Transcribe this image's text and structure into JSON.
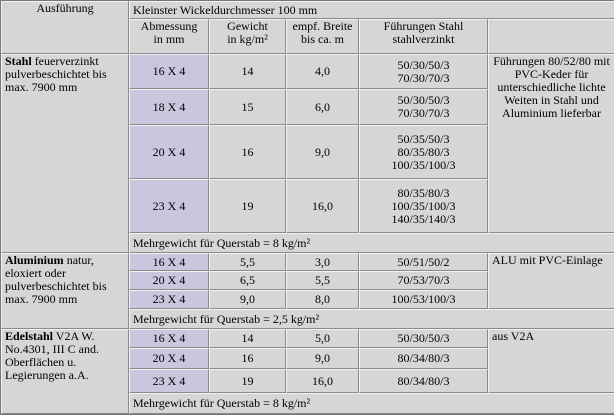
{
  "header": {
    "title": "Kleinster Wickeldurchmesser 100 mm",
    "columns": [
      "Ausführung",
      "Abmessung\nin mm",
      "Gewicht\nin kg/m²",
      "empf. Breite\nbis ca. m",
      "Führungen Stahl\nstahlverzinkt"
    ]
  },
  "sections": [
    {
      "material": "Stahl",
      "description": " feuerverzinkt pulverbeschichtet bis max. 7900 mm",
      "rows": [
        [
          "16 X 4",
          "14",
          "4,0",
          "50/30/50/3\n70/30/70/3"
        ],
        [
          "18 X 4",
          "15",
          "6,0",
          "50/30/50/3\n70/30/70/3"
        ],
        [
          "20 X 4",
          "16",
          "9,0",
          "50/35/50/3\n80/35/80/3\n100/35/100/3"
        ],
        [
          "23 X 4",
          "19",
          "16,0",
          "80/35/80/3\n100/35/100/3\n140/35/140/3"
        ]
      ],
      "note": "Führungen 80/52/80 mit PVC-Keder für unterschiedliche lichte Weiten in Stahl und Aluminium lieferbar",
      "extra": "Mehrgewicht für Querstab = 8 kg/m²"
    },
    {
      "material": "Aluminium",
      "description": " natur, eloxiert oder pulverbeschichtet bis max. 7900 mm",
      "rows": [
        [
          "16 X 4",
          "5,5",
          "3,0",
          "50/51/50/2"
        ],
        [
          "20 X 4",
          "6,5",
          "5,5",
          "70/53/70/3"
        ],
        [
          "23 X 4",
          "9,0",
          "8,0",
          "100/53/100/3"
        ]
      ],
      "note": "ALU mit PVC-Einlage",
      "extra": "Mehrgewicht für Querstab = 2,5 kg/m²"
    },
    {
      "material": "Edelstahl",
      "description": " V2A W. No.4301, III C and. Oberflächen u. Legierungen a.A.",
      "rows": [
        [
          "16 X 4",
          "14",
          "5,0",
          "50/30/50/3"
        ],
        [
          "20 X 4",
          "16",
          "9,0",
          "80/34/80/3"
        ],
        [
          "23 X 4",
          "19",
          "16,0",
          "80/34/80/3"
        ]
      ],
      "note": "aus V2A",
      "extra": "Mehrgewicht für Querstab = 8 kg/m²"
    }
  ]
}
